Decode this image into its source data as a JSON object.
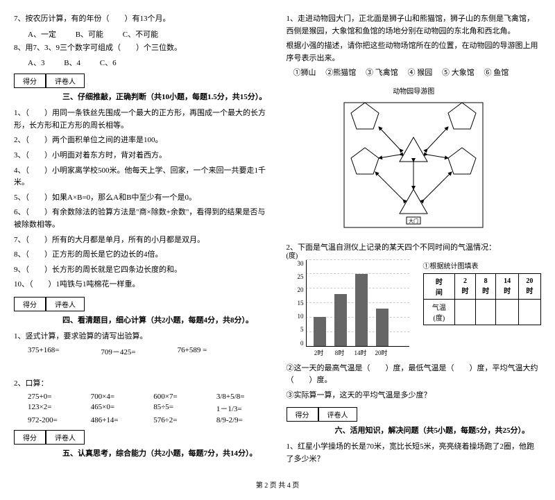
{
  "left": {
    "q7": {
      "text": "7、按农历计算，有的年份（　　）有13个月。",
      "a": "A、一定",
      "b": "B、可能",
      "c": "C、不可能"
    },
    "q8": {
      "text": "8、用7、3、9三个数字可组成（　　）个三位数。",
      "a": "A、3",
      "b": "B、4",
      "c": "C、6"
    },
    "score": {
      "a": "得分",
      "b": "评卷人"
    },
    "sec3": "三、仔细推敲，正确判断（共10小题，每题1.5分，共15分）。",
    "j1": "1、（　　）用同一条铁丝先围成一个最大的正方形，再围成一个最大的长方形，长方形和正方形的周长相等。",
    "j2": "2、（　　）两个面积单位之间的进率是100。",
    "j3": "3、（　　）小明面对着东方时，背对着西方。",
    "j4": "4、（　　）小明家离学校500米。他每天上学、回家，一个来回一共要走1千米。",
    "j5": "5、（　　）如果A×B=0，那么A和B中至少有一个是0。",
    "j6": "6、（　　）有余数除法的验算方法是\"商×除数+余数\"，看得到的结果是否与被除数相等。",
    "j7": "7、（　　）所有的大月都是单月，所有的小月都是双月。",
    "j8": "8、（　　）正方形的周长是它的边长的4倍。",
    "j9": "9、（　　）长方形的周长就是它四条边长度的和。",
    "j10": "10、（　　）1吨铁与1吨棉花一样重。",
    "sec4": "四、看清题目，细心计算（共2小题，每题4分，共8分）。",
    "c1_title": "1、竖式计算，要求验算的请写出验算。",
    "c1": {
      "a": "375+168=",
      "b": "709－425=",
      "c": "76+589 ="
    },
    "c2_title": "2、口算：",
    "c2": {
      "a": "275+0=",
      "b": "700×4=",
      "c": "600×7=",
      "d": "3/8+5/8=",
      "e": "123×2=",
      "f": "465×0=",
      "g": "85÷5=",
      "h": "1－1/3=",
      "i": "972-200=",
      "j": "486+14=",
      "k": "576÷2=",
      "l": "8/9-2/9="
    },
    "sec5": "五、认真思考，综合能力（共2小题，每题7分，共14分）。"
  },
  "right": {
    "q1": {
      "text": "1、走进动物园大门，正北面是狮子山和熊猫馆，狮子山的东侧是飞禽馆，西侧是猴园，大象馆和鱼馆的场地分别在动物园的东北角和西北角。",
      "text2": "根据小强的描述，请你把这些动物场馆所在的位置，在动物园的导游图上用序号表示出来。"
    },
    "legend": {
      "a": "①狮山",
      "b": "②熊猫馆",
      "c": "③ 飞禽馆",
      "d": "④ 猴园",
      "e": "⑤ 大象馆",
      "f": "⑥ 鱼馆"
    },
    "diagram_title": "动物园导游图",
    "gate": "大门",
    "q2": "2、下面是气温自测仪上记录的某天四个不同时间的气温情况：",
    "chart": {
      "unit": "(度)",
      "title": "①根据统计图填表",
      "y": [
        0,
        5,
        10,
        15,
        20,
        25,
        30
      ],
      "x": [
        "2时",
        "8时",
        "14时",
        "20时"
      ],
      "bars": [
        10,
        18,
        25,
        13
      ],
      "bar_color": "#666666",
      "grid_color": "#cccccc"
    },
    "table": {
      "h1": "时　间",
      "h2": "2时",
      "h3": "8时",
      "h4": "14时",
      "h5": "20时",
      "r1": "气温(度)"
    },
    "q2b": "②这一天的最高气温是（　　）度，最低气温是（　　）度，平均气温大约（　　）度。",
    "q2c": "③实际算一算，这天的平均气温是多少度？",
    "sec6": "六、活用知识，解决问题（共5小题，每题5分，共25分）。",
    "p1": "1、红星小学操场的长是70米，宽比长短5米，亮亮绕着操场跑了2圈，他跑了多少米？"
  },
  "footer": "第 2 页 共 4 页"
}
